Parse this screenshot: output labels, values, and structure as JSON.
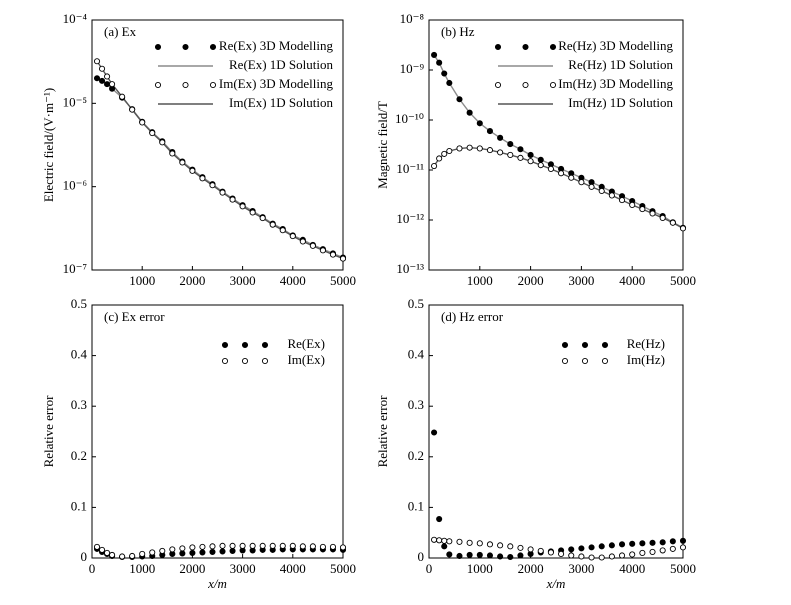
{
  "chart_data": [
    {
      "type": "line",
      "title": "(a) Ex",
      "ylabel": "Electric field/(V·m⁻¹)",
      "yscale": "log",
      "legend": "upper right",
      "x": [
        100,
        200,
        300,
        400,
        600,
        800,
        1000,
        1200,
        1400,
        1600,
        1800,
        2000,
        2200,
        2400,
        2600,
        2800,
        3000,
        3200,
        3400,
        3600,
        3800,
        4000,
        4200,
        4400,
        4600,
        4800,
        5000
      ],
      "xlim": [
        0,
        5000
      ],
      "xticks": [
        1000,
        2000,
        3000,
        4000,
        5000
      ],
      "ylim": [
        1e-07,
        0.0001
      ],
      "yticks": [
        {
          "value": 1e-07,
          "label": "10⁻⁷"
        },
        {
          "value": 1e-06,
          "label": "10⁻⁶"
        },
        {
          "value": 1e-05,
          "label": "10⁻⁵"
        },
        {
          "value": 0.0001,
          "label": "10⁻⁴"
        }
      ],
      "series": [
        {
          "name": "Re(Ex) 3D Modelling",
          "color": "#000000",
          "marker": "filled",
          "values": [
            2e-05,
            1.86e-05,
            1.7e-05,
            1.5e-05,
            1.17e-05,
            8.5e-06,
            6e-06,
            4.5e-06,
            3.5e-06,
            2.6e-06,
            2e-06,
            1.6e-06,
            1.3e-06,
            1.07e-06,
            8.7e-07,
            7.2e-07,
            6e-07,
            5.1e-07,
            4.3e-07,
            3.6e-07,
            3.1e-07,
            2.6e-07,
            2.3e-07,
            2e-07,
            1.78e-07,
            1.58e-07,
            1.41e-07
          ]
        },
        {
          "name": "Re(Ex) 1D Solution",
          "color": "#8c8c8c",
          "marker": "none",
          "values": [
            2e-05,
            1.86e-05,
            1.7e-05,
            1.5e-05,
            1.17e-05,
            8.5e-06,
            6e-06,
            4.5e-06,
            3.5e-06,
            2.6e-06,
            2e-06,
            1.6e-06,
            1.3e-06,
            1.07e-06,
            8.7e-07,
            7.2e-07,
            6e-07,
            5.1e-07,
            4.3e-07,
            3.6e-07,
            3.1e-07,
            2.6e-07,
            2.3e-07,
            2e-07,
            1.78e-07,
            1.58e-07,
            1.41e-07
          ]
        },
        {
          "name": "Im(Ex) 3D Modelling",
          "color": "#000000",
          "marker": "open",
          "values": [
            3.2e-05,
            2.6e-05,
            2.1e-05,
            1.7e-05,
            1.2e-05,
            8.4e-06,
            5.9e-06,
            4.4e-06,
            3.4e-06,
            2.5e-06,
            1.95e-06,
            1.55e-06,
            1.26e-06,
            1.04e-06,
            8.5e-07,
            7e-07,
            5.8e-07,
            4.9e-07,
            4.2e-07,
            3.5e-07,
            3e-07,
            2.55e-07,
            2.2e-07,
            1.95e-07,
            1.72e-07,
            1.53e-07,
            1.37e-07
          ]
        },
        {
          "name": "Im(Ex) 1D Solution",
          "color": "#555555",
          "marker": "none",
          "values": [
            3.2e-05,
            2.6e-05,
            2.1e-05,
            1.7e-05,
            1.2e-05,
            8.4e-06,
            5.9e-06,
            4.4e-06,
            3.4e-06,
            2.5e-06,
            1.95e-06,
            1.55e-06,
            1.26e-06,
            1.04e-06,
            8.5e-07,
            7e-07,
            5.8e-07,
            4.9e-07,
            4.2e-07,
            3.5e-07,
            3e-07,
            2.55e-07,
            2.2e-07,
            1.95e-07,
            1.72e-07,
            1.53e-07,
            1.37e-07
          ]
        }
      ]
    },
    {
      "type": "line",
      "title": "(b) Hz",
      "ylabel": "Magnetic field/T",
      "yscale": "log",
      "legend": "upper right",
      "x": [
        100,
        200,
        300,
        400,
        600,
        800,
        1000,
        1200,
        1400,
        1600,
        1800,
        2000,
        2200,
        2400,
        2600,
        2800,
        3000,
        3200,
        3400,
        3600,
        3800,
        4000,
        4200,
        4400,
        4600,
        4800,
        5000
      ],
      "xlim": [
        0,
        5000
      ],
      "xticks": [
        1000,
        2000,
        3000,
        4000,
        5000
      ],
      "ylim": [
        1e-13,
        1e-08
      ],
      "yticks": [
        {
          "value": 1e-13,
          "label": "10⁻¹³"
        },
        {
          "value": 1e-12,
          "label": "10⁻¹²"
        },
        {
          "value": 1e-11,
          "label": "10⁻¹¹"
        },
        {
          "value": 1e-10,
          "label": "10⁻¹⁰"
        },
        {
          "value": 1e-09,
          "label": "10⁻⁹"
        },
        {
          "value": 1e-08,
          "label": "10⁻⁸"
        }
      ],
      "series": [
        {
          "name": "Re(Hz) 3D Modelling",
          "color": "#000000",
          "marker": "filled",
          "values": [
            2e-09,
            1.4e-09,
            8.5e-10,
            5.5e-10,
            2.6e-10,
            1.4e-10,
            8.6e-11,
            6e-11,
            4.4e-11,
            3.3e-11,
            2.6e-11,
            2e-11,
            1.6e-11,
            1.3e-11,
            1.05e-11,
            8.6e-12,
            7e-12,
            5.7e-12,
            4.6e-12,
            3.7e-12,
            3e-12,
            2.4e-12,
            1.9e-12,
            1.5e-12,
            1.2e-12,
            9e-13,
            7e-13
          ]
        },
        {
          "name": "Re(Hz) 1D Solution",
          "color": "#8c8c8c",
          "marker": "none",
          "values": [
            2e-09,
            1.4e-09,
            8.5e-10,
            5.5e-10,
            2.6e-10,
            1.4e-10,
            8.6e-11,
            6e-11,
            4.4e-11,
            3.3e-11,
            2.6e-11,
            2e-11,
            1.6e-11,
            1.3e-11,
            1.05e-11,
            8.6e-12,
            7e-12,
            5.7e-12,
            4.6e-12,
            3.7e-12,
            3e-12,
            2.4e-12,
            1.9e-12,
            1.5e-12,
            1.2e-12,
            9e-13,
            7e-13
          ]
        },
        {
          "name": "Im(Hz) 3D Modelling",
          "color": "#000000",
          "marker": "open",
          "values": [
            1.2e-11,
            1.7e-11,
            2.1e-11,
            2.4e-11,
            2.7e-11,
            2.8e-11,
            2.7e-11,
            2.5e-11,
            2.25e-11,
            2e-11,
            1.75e-11,
            1.5e-11,
            1.25e-11,
            1.05e-11,
            8.6e-12,
            7e-12,
            5.7e-12,
            4.6e-12,
            3.8e-12,
            3.1e-12,
            2.5e-12,
            2e-12,
            1.65e-12,
            1.35e-12,
            1.1e-12,
            8.8e-13,
            6.8e-13
          ]
        },
        {
          "name": "Im(Hz) 1D Solution",
          "color": "#555555",
          "marker": "none",
          "values": [
            1.2e-11,
            1.7e-11,
            2.1e-11,
            2.4e-11,
            2.7e-11,
            2.8e-11,
            2.7e-11,
            2.5e-11,
            2.25e-11,
            2e-11,
            1.75e-11,
            1.5e-11,
            1.25e-11,
            1.05e-11,
            8.6e-12,
            7e-12,
            5.7e-12,
            4.6e-12,
            3.8e-12,
            3.1e-12,
            2.5e-12,
            2e-12,
            1.65e-12,
            1.35e-12,
            1.1e-12,
            8.8e-13,
            6.8e-13
          ]
        }
      ]
    },
    {
      "type": "scatter",
      "title": "(c) Ex error",
      "ylabel": "Relative error",
      "xlabel": "x/m",
      "legend": "upper right",
      "x": [
        100,
        200,
        300,
        400,
        600,
        800,
        1000,
        1200,
        1400,
        1600,
        1800,
        2000,
        2200,
        2400,
        2600,
        2800,
        3000,
        3200,
        3400,
        3600,
        3800,
        4000,
        4200,
        4400,
        4600,
        4800,
        5000
      ],
      "xlim": [
        0,
        5000
      ],
      "xticks": [
        0,
        1000,
        2000,
        3000,
        4000,
        5000
      ],
      "ylim": [
        0,
        0.5
      ],
      "yticks": [
        0,
        0.1,
        0.2,
        0.3,
        0.4,
        0.5
      ],
      "series": [
        {
          "name": "Re(Ex)",
          "color": "#000000",
          "marker": "filled",
          "values": [
            0.018,
            0.012,
            0.008,
            0.004,
            0.002,
            0.002,
            0.003,
            0.004,
            0.006,
            0.008,
            0.009,
            0.01,
            0.011,
            0.012,
            0.013,
            0.014,
            0.015,
            0.015,
            0.016,
            0.016,
            0.017,
            0.017,
            0.017,
            0.017,
            0.017,
            0.017,
            0.016
          ]
        },
        {
          "name": "Im(Ex)",
          "color": "#000000",
          "marker": "open",
          "values": [
            0.022,
            0.016,
            0.01,
            0.006,
            0.003,
            0.004,
            0.008,
            0.011,
            0.014,
            0.017,
            0.019,
            0.021,
            0.022,
            0.023,
            0.024,
            0.024,
            0.024,
            0.024,
            0.024,
            0.024,
            0.024,
            0.024,
            0.023,
            0.023,
            0.022,
            0.022,
            0.021
          ]
        }
      ]
    },
    {
      "type": "scatter",
      "title": "(d) Hz error",
      "ylabel": "Relative error",
      "xlabel": "x/m",
      "legend": "upper right",
      "x": [
        100,
        200,
        300,
        400,
        600,
        800,
        1000,
        1200,
        1400,
        1600,
        1800,
        2000,
        2200,
        2400,
        2600,
        2800,
        3000,
        3200,
        3400,
        3600,
        3800,
        4000,
        4200,
        4400,
        4600,
        4800,
        5000
      ],
      "xlim": [
        0,
        5000
      ],
      "xticks": [
        0,
        1000,
        2000,
        3000,
        4000,
        5000
      ],
      "ylim": [
        0,
        0.5
      ],
      "yticks": [
        0,
        0.1,
        0.2,
        0.3,
        0.4,
        0.5
      ],
      "series": [
        {
          "name": "Re(Hz)",
          "color": "#000000",
          "marker": "filled",
          "values": [
            0.248,
            0.077,
            0.023,
            0.007,
            0.004,
            0.006,
            0.006,
            0.005,
            0.003,
            0.002,
            0.005,
            0.008,
            0.011,
            0.013,
            0.015,
            0.017,
            0.019,
            0.021,
            0.023,
            0.025,
            0.027,
            0.028,
            0.029,
            0.03,
            0.031,
            0.033,
            0.034
          ]
        },
        {
          "name": "Im(Hz)",
          "color": "#000000",
          "marker": "open",
          "values": [
            0.036,
            0.035,
            0.034,
            0.033,
            0.032,
            0.03,
            0.029,
            0.027,
            0.025,
            0.023,
            0.02,
            0.017,
            0.014,
            0.011,
            0.008,
            0.005,
            0.003,
            0.001,
            0.001,
            0.003,
            0.005,
            0.007,
            0.01,
            0.012,
            0.015,
            0.018,
            0.021
          ]
        }
      ]
    }
  ]
}
